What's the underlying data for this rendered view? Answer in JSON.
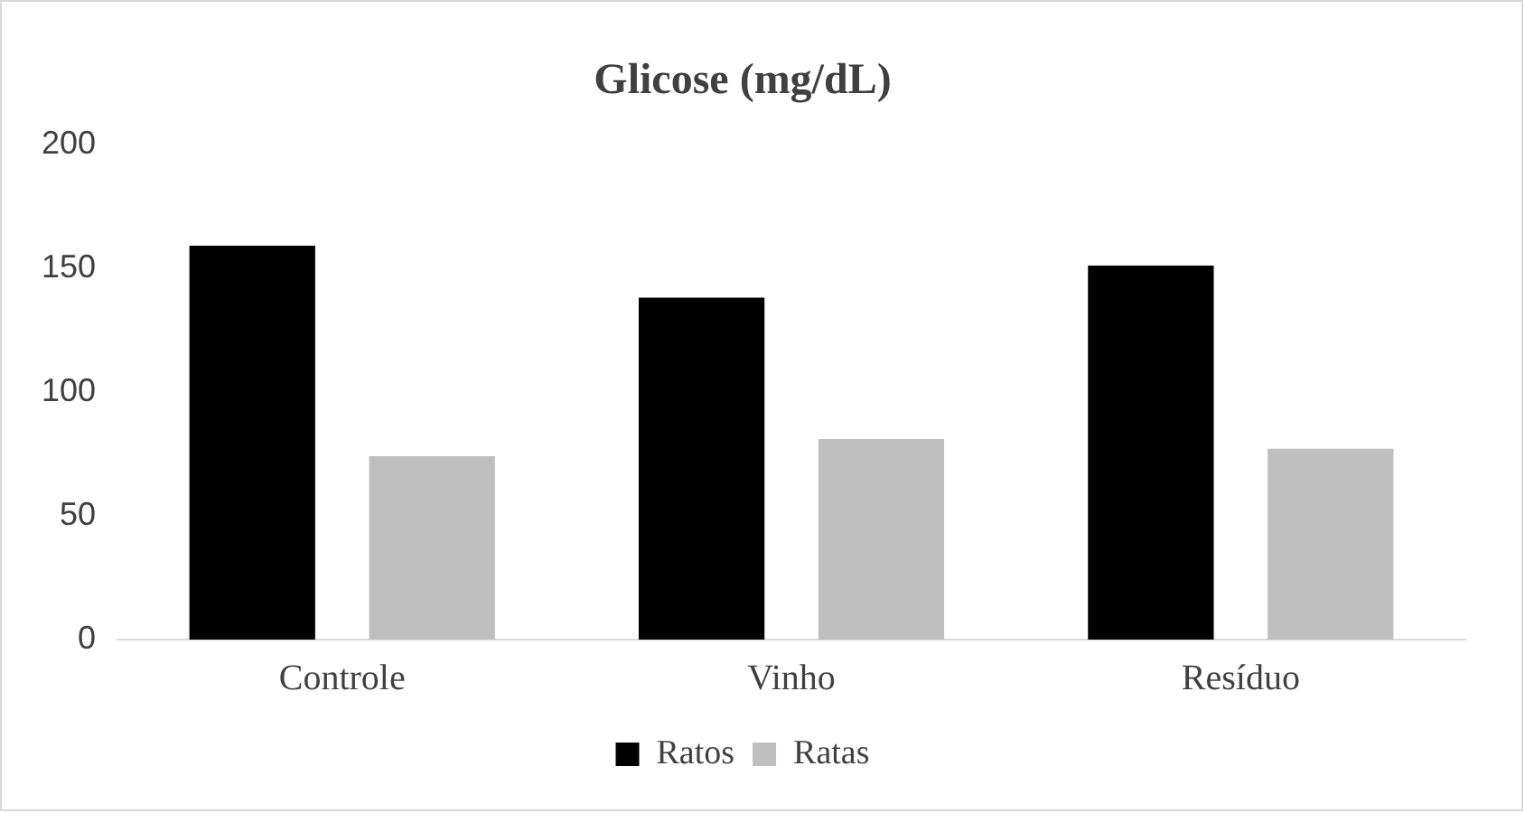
{
  "chart_data": {
    "type": "bar",
    "title": "Glicose (mg/dL)",
    "categories": [
      "Controle",
      "Vinho",
      "Resíduo"
    ],
    "series": [
      {
        "name": "Ratos",
        "color": "#000000",
        "values": [
          159,
          138,
          151
        ]
      },
      {
        "name": "Ratas",
        "color": "#bfbfbf",
        "values": [
          74,
          81,
          77
        ]
      }
    ],
    "ylim": [
      0,
      200
    ],
    "yticks": [
      0,
      50,
      100,
      150,
      200
    ],
    "grid": false,
    "legend": "bottom"
  }
}
